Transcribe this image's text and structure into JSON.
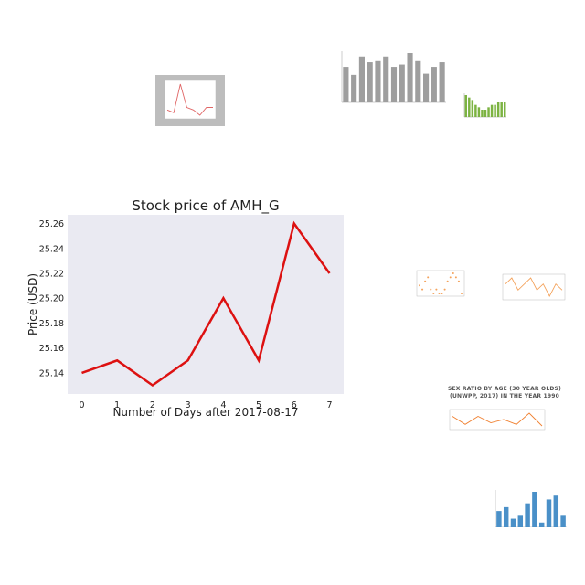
{
  "chart_data": [
    {
      "type": "line",
      "title": "Stock price of AMH_G",
      "xlabel": "Number of Days after 2017-08-17",
      "ylabel": "Price (USD)",
      "x": [
        0,
        1,
        2,
        3,
        4,
        5,
        6,
        7
      ],
      "y": [
        25.14,
        25.15,
        25.13,
        25.15,
        25.2,
        25.15,
        25.26,
        25.22
      ],
      "xlim": [
        -0.4,
        7.4
      ],
      "ylim": [
        25.123,
        25.267
      ],
      "yticks": [
        "25.14",
        "25.16",
        "25.18",
        "25.20",
        "25.22",
        "25.24",
        "25.26"
      ],
      "xticks": [
        "0",
        "1",
        "2",
        "3",
        "4",
        "5",
        "6",
        "7"
      ],
      "grid": false,
      "background": "#eaeaf2",
      "line_color": "#dd1111"
    },
    {
      "type": "line",
      "title": "",
      "y": [
        25.15,
        25.14,
        25.25,
        25.16,
        25.15,
        25.13,
        25.16,
        25.16
      ],
      "line_color": "#e06666"
    },
    {
      "type": "bar",
      "title": "",
      "values": [
        62,
        48,
        80,
        70,
        72,
        80,
        62,
        66,
        86,
        72,
        50,
        62,
        70
      ],
      "bar_color": "#9e9e9e"
    },
    {
      "type": "bar",
      "title": "",
      "values": [
        9,
        8,
        7,
        5,
        4,
        3,
        3,
        4,
        5,
        5,
        6,
        6,
        6
      ],
      "bar_color": "#7cb342"
    },
    {
      "type": "scatter",
      "title": "",
      "y": [
        6,
        5,
        7,
        8,
        5,
        4,
        5,
        4,
        4,
        5,
        7,
        8,
        9,
        8,
        7,
        4
      ],
      "marker_color": "#f4a25b"
    },
    {
      "type": "line",
      "title": "",
      "y": [
        7,
        8,
        6,
        7,
        8,
        6,
        7,
        5,
        7,
        6
      ],
      "line_color": "#f4a25b"
    },
    {
      "type": "line",
      "title": "SEX RATIO BY AGE (30 YEAR OLDS) (UNWPP, 2017) IN THE YEAR 1990",
      "y": [
        6,
        5.5,
        6,
        5.6,
        5.8,
        5.5,
        6.2,
        5.4
      ],
      "line_color": "#f08030"
    },
    {
      "type": "bar",
      "title": "",
      "values": [
        4,
        5,
        2,
        3,
        6,
        9,
        1,
        7,
        8,
        3
      ],
      "bar_color": "#4a90c8"
    }
  ]
}
